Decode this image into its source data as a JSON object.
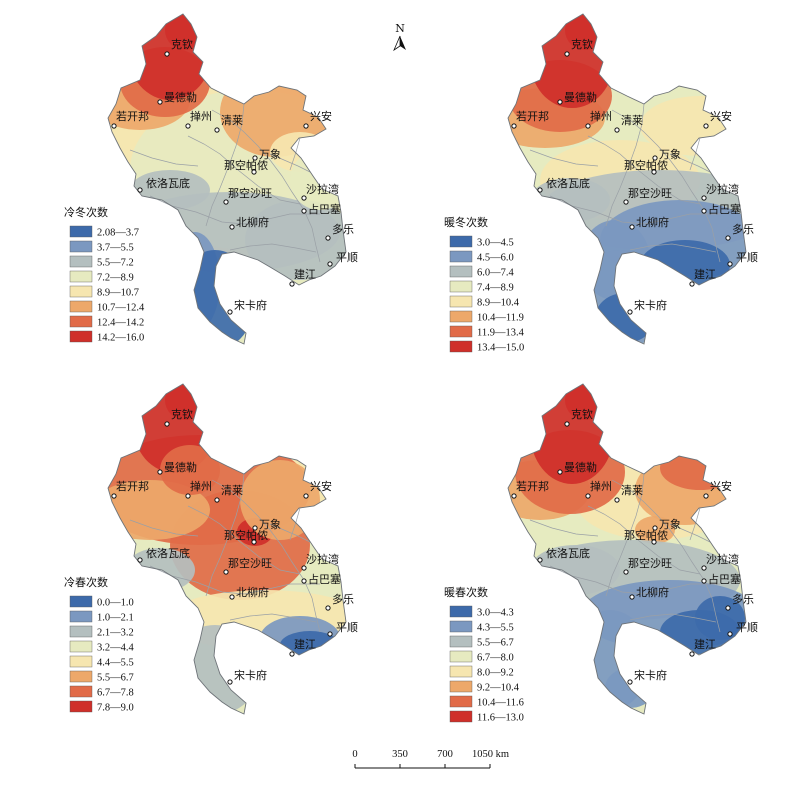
{
  "north_arrow": {
    "label": "N"
  },
  "colors": {
    "c1": "#3d6aaa",
    "c2": "#7b98c0",
    "c3": "#b4bfbf",
    "c4": "#e6eac0",
    "c5": "#f6e6b0",
    "c6": "#eda86a",
    "c7": "#e16b48",
    "c8": "#cf2f2a",
    "border": "#9aa0a6",
    "outline": "#6e7378",
    "point_stroke": "#111111"
  },
  "panels": [
    {
      "id": "cold-winter",
      "title": "冷冬次数",
      "legend": [
        "2.08—3.7",
        "3.7—5.5",
        "5.5—7.2",
        "7.2—8.9",
        "8.9—10.7",
        "10.7—12.4",
        "12.4—14.2",
        "14.2—16.0"
      ],
      "cities": [
        "克钦",
        "曼德勒",
        "若开邦",
        "掸州",
        "清莱",
        "兴安",
        "万象",
        "那空帕侬",
        "依洛瓦底",
        "那空沙旺",
        "沙拉湾",
        "占巴塞",
        "北柳府",
        "多乐",
        "平顺",
        "建江",
        "宋卡府"
      ]
    },
    {
      "id": "warm-winter",
      "title": "暖冬次数",
      "legend": [
        "3.0—4.5",
        "4.5—6.0",
        "6.0—7.4",
        "7.4—8.9",
        "8.9—10.4",
        "10.4—11.9",
        "11.9—13.4",
        "13.4—15.0"
      ],
      "cities": [
        "克钦",
        "曼德勒",
        "若开邦",
        "掸州",
        "清莱",
        "兴安",
        "万象",
        "那空帕侬",
        "依洛瓦底",
        "那空沙旺",
        "沙拉湾",
        "占巴塞",
        "北柳府",
        "多乐",
        "平顺",
        "建江",
        "宋卡府"
      ]
    },
    {
      "id": "cold-spring",
      "title": "冷春次数",
      "legend": [
        "0.0—1.0",
        "1.0—2.1",
        "2.1—3.2",
        "3.2—4.4",
        "4.4—5.5",
        "5.5—6.7",
        "6.7—7.8",
        "7.8—9.0"
      ],
      "cities": [
        "克钦",
        "曼德勒",
        "若开邦",
        "掸州",
        "清莱",
        "兴安",
        "万象",
        "那空帕侬",
        "依洛瓦底",
        "那空沙旺",
        "沙拉湾",
        "占巴塞",
        "北柳府",
        "多乐",
        "平顺",
        "建江",
        "宋卡府"
      ]
    },
    {
      "id": "warm-spring",
      "title": "暖春次数",
      "legend": [
        "3.0—4.3",
        "4.3—5.5",
        "5.5—6.7",
        "6.7—8.0",
        "8.0—9.2",
        "9.2—10.4",
        "10.4—11.6",
        "11.6—13.0"
      ],
      "cities": [
        "克钦",
        "曼德勒",
        "若开邦",
        "掸州",
        "清莱",
        "兴安",
        "万象",
        "那空帕侬",
        "依洛瓦底",
        "那空沙旺",
        "沙拉湾",
        "占巴塞",
        "北柳府",
        "多乐",
        "平顺",
        "建江",
        "宋卡府"
      ]
    }
  ],
  "scale_bar": {
    "ticks": [
      "0",
      "350",
      "700",
      "1050 km"
    ]
  }
}
